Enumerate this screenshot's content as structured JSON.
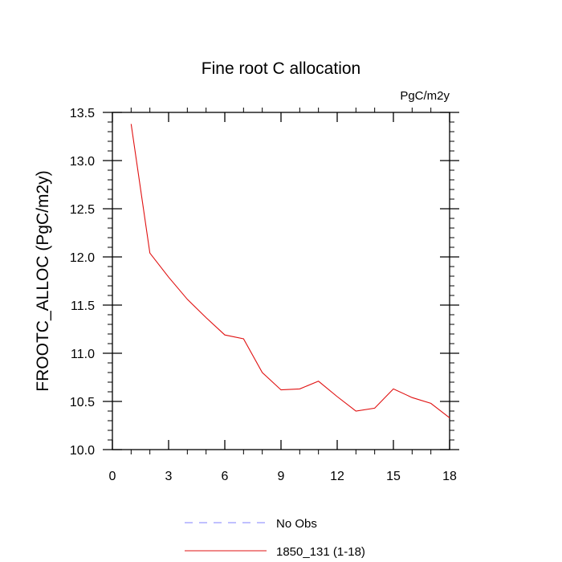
{
  "chart_data": {
    "type": "line",
    "title": "Fine root C allocation",
    "units": "PgC/m2y",
    "ylabel": "FROOTC_ALLOC  (PgC/m2y)",
    "xlabel": "",
    "xlim": [
      0,
      18
    ],
    "ylim": [
      10.0,
      13.5
    ],
    "xticks": [
      0,
      3,
      6,
      9,
      12,
      15,
      18
    ],
    "xtick_labels": [
      "0",
      "3",
      "6",
      "9",
      "12",
      "15",
      "18"
    ],
    "yticks": [
      10.0,
      10.5,
      11.0,
      11.5,
      12.0,
      12.5,
      13.0,
      13.5
    ],
    "ytick_labels": [
      "10.0",
      "10.5",
      "11.0",
      "11.5",
      "12.0",
      "12.5",
      "13.0",
      "13.5"
    ],
    "grid": false,
    "legend_position": "bottom",
    "series": [
      {
        "name": "No Obs",
        "color": "#8080ff",
        "style": "dashed",
        "x": [],
        "values": []
      },
      {
        "name": "1850_131 (1-18)",
        "color": "#e01010",
        "style": "solid",
        "x": [
          1,
          2,
          3,
          4,
          5,
          6,
          7,
          8,
          9,
          10,
          11,
          12,
          13,
          14,
          15,
          16,
          17,
          18
        ],
        "values": [
          13.38,
          12.04,
          11.79,
          11.56,
          11.37,
          11.19,
          11.15,
          10.8,
          10.62,
          10.63,
          10.71,
          10.55,
          10.4,
          10.43,
          10.63,
          10.54,
          10.48,
          10.33
        ]
      }
    ]
  }
}
